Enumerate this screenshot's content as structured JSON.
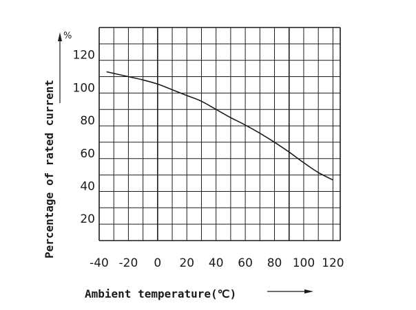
{
  "chart_data": {
    "type": "line",
    "title": "",
    "xlabel": "Ambient temperature(℃)",
    "ylabel": "Percentage of rated current",
    "y_unit": "%",
    "xlim": [
      -40,
      125
    ],
    "ylim": [
      10,
      140
    ],
    "x_ticks": [
      -40,
      -20,
      0,
      20,
      40,
      60,
      80,
      100,
      120
    ],
    "y_ticks": [
      20,
      40,
      60,
      80,
      100,
      120
    ],
    "x_gridlines": [
      -40,
      -30,
      -20,
      -10,
      0,
      10,
      20,
      30,
      40,
      50,
      60,
      70,
      80,
      90,
      100,
      110,
      120,
      125
    ],
    "y_gridlines": [
      10,
      20,
      30,
      40,
      50,
      60,
      70,
      80,
      90,
      100,
      110,
      120,
      130,
      140
    ],
    "grid": true,
    "series": [
      {
        "color": "#1a1a1a",
        "x": [
          -35,
          -20,
          -10,
          0,
          10,
          20,
          30,
          40,
          50,
          60,
          70,
          80,
          90,
          100,
          110,
          120
        ],
        "y": [
          113,
          110,
          108,
          105.5,
          102,
          98.5,
          95,
          90,
          85,
          80.5,
          75.5,
          70,
          64,
          57.5,
          51.5,
          47
        ]
      }
    ]
  }
}
